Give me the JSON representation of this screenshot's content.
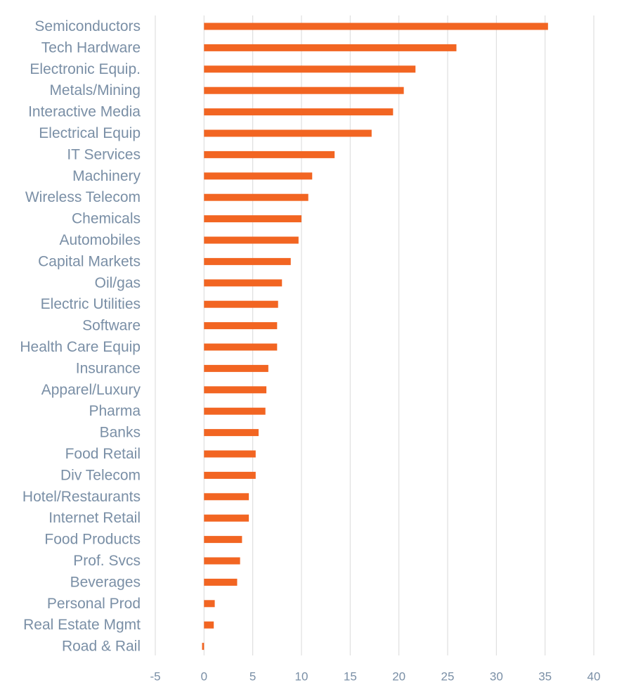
{
  "chart_data": {
    "type": "bar",
    "orientation": "horizontal",
    "categories": [
      "Semiconductors",
      "Tech Hardware",
      "Electronic Equip.",
      "Metals/Mining",
      "Interactive Media",
      "Electrical Equip",
      "IT Services",
      "Machinery",
      "Wireless Telecom",
      "Chemicals",
      "Automobiles",
      "Capital Markets",
      "Oil/gas",
      "Electric Utilities",
      "Software",
      "Health Care Equip",
      "Insurance",
      "Apparel/Luxury",
      "Pharma",
      "Banks",
      "Food Retail",
      "Div Telecom",
      "Hotel/Restaurants",
      "Internet Retail",
      "Food Products",
      "Prof. Svcs",
      "Beverages",
      "Personal Prod",
      "Real Estate Mgmt",
      "Road & Rail"
    ],
    "values": [
      35.3,
      25.9,
      21.7,
      20.5,
      19.4,
      17.2,
      13.4,
      11.1,
      10.7,
      10.0,
      9.7,
      8.9,
      8.0,
      7.6,
      7.5,
      7.5,
      6.6,
      6.4,
      6.3,
      5.6,
      5.3,
      5.3,
      4.6,
      4.6,
      3.9,
      3.7,
      3.4,
      1.1,
      1.0,
      -0.2
    ],
    "xlim": [
      -5,
      40
    ],
    "xticks": [
      "-5",
      "0",
      "5",
      "10",
      "15",
      "20",
      "25",
      "30",
      "35",
      "40"
    ],
    "grid": "vertical",
    "legend": "none",
    "title": "",
    "xlabel": "",
    "ylabel": "",
    "colors": {
      "bar": "#F26522",
      "label": "#7A8FA6",
      "grid": "#D9D9D9"
    }
  }
}
